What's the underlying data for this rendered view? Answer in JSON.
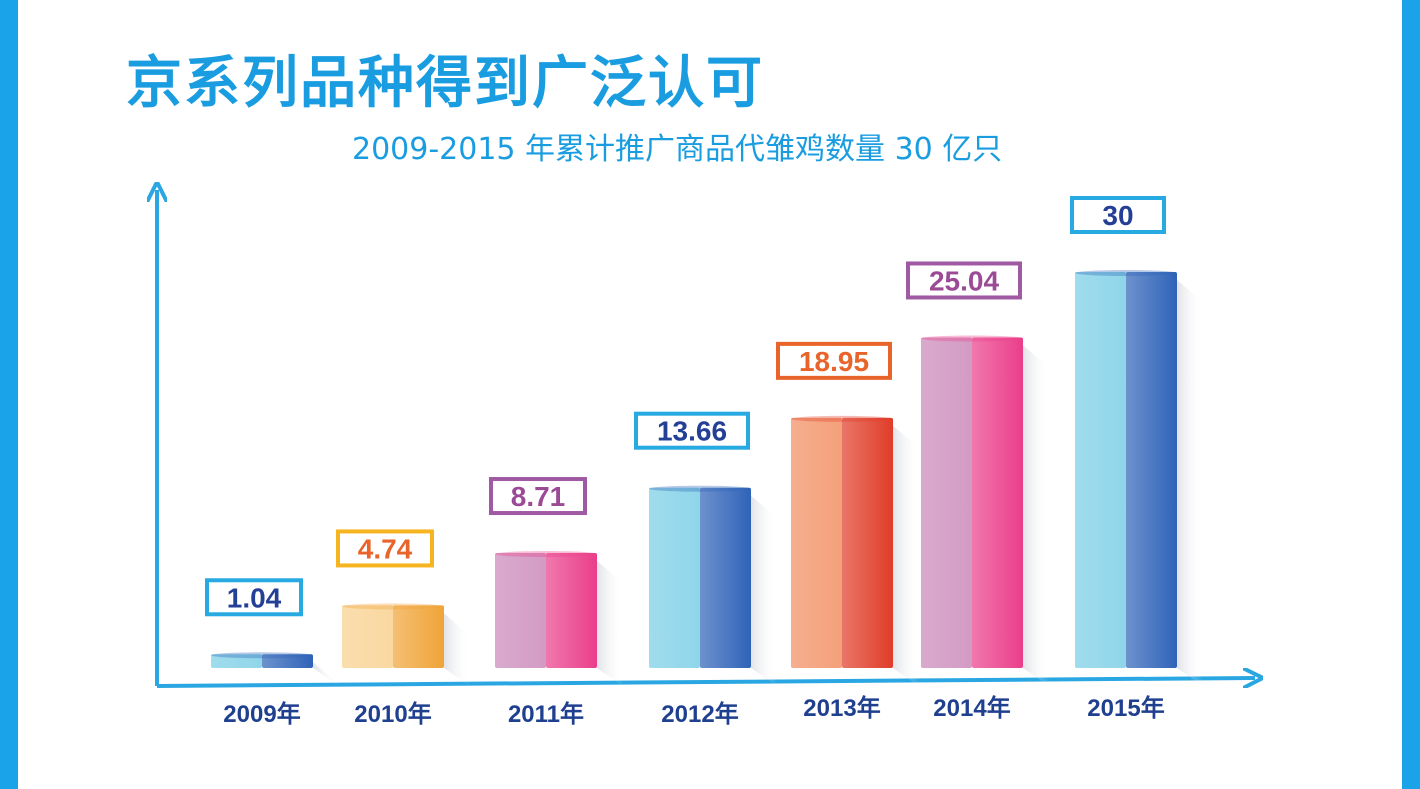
{
  "title": "京系列品种得到广泛认可",
  "subtitle": "2009-2015 年累计推广商品代雏鸡数量 30 亿只",
  "chart_data": {
    "type": "bar",
    "title": "京系列品种得到广泛认可",
    "subtitle": "2009-2015 年累计推广商品代雏鸡数量 30 亿只",
    "categories": [
      "2009年",
      "2010年",
      "2011年",
      "2012年",
      "2013年",
      "2014年",
      "2015年"
    ],
    "values": [
      1.04,
      4.74,
      8.71,
      13.66,
      18.95,
      25.04,
      30
    ],
    "value_labels": [
      "1.04",
      "4.74",
      "8.71",
      "13.66",
      "18.95",
      "25.04",
      "30"
    ],
    "xlabel": "",
    "ylabel": "",
    "ylim": [
      0,
      32
    ],
    "grid": false,
    "legend": "none",
    "bar_colors": [
      {
        "light": "#8fd6ea",
        "dark": "#2f63b8",
        "label": "#243f96",
        "box": "#27a9e1"
      },
      {
        "light": "#fad8a0",
        "dark": "#f0a438",
        "label": "#e8642a",
        "box": "#f6b520"
      },
      {
        "light": "#d39bc4",
        "dark": "#ea3e8a",
        "label": "#9b4a96",
        "box": "#a05aa3"
      },
      {
        "light": "#8fd6ea",
        "dark": "#2f63b8",
        "label": "#243f96",
        "box": "#27a9e1"
      },
      {
        "light": "#f4a07a",
        "dark": "#e03c28",
        "label": "#e8642a",
        "box": "#e8642a"
      },
      {
        "light": "#d39bc4",
        "dark": "#ea3e8a",
        "label": "#9b4a96",
        "box": "#a05aa3"
      },
      {
        "light": "#8fd6ea",
        "dark": "#2f63b8",
        "label": "#243f96",
        "box": "#27a9e1"
      }
    ],
    "axis_color": "#2aa7e2"
  }
}
